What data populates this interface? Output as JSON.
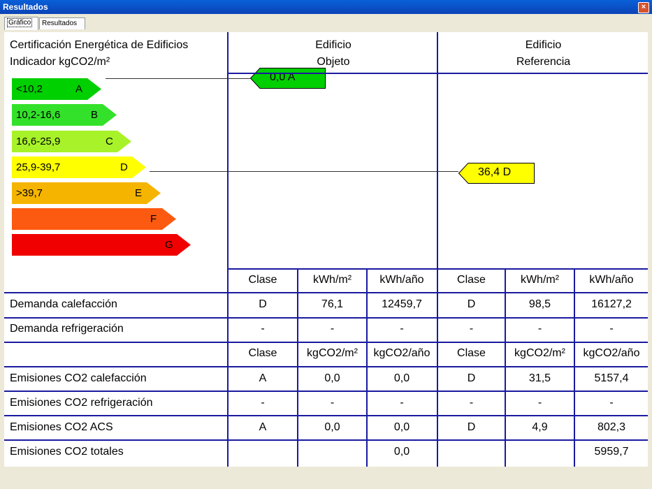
{
  "window": {
    "title": "Resultados",
    "close_glyph": "×"
  },
  "tabs": [
    {
      "label": "Gráfico",
      "active": true
    },
    {
      "label": "Resultados",
      "active": false
    }
  ],
  "header": {
    "cert_line1": "Certificación Energética de Edificios",
    "cert_line2": "Indicador kgCO2/m²",
    "obj_line1": "Edificio",
    "obj_line2": "Objeto",
    "ref_line1": "Edificio",
    "ref_line2": "Referencia"
  },
  "scale": [
    {
      "range": "<10,2",
      "letter": "A",
      "color": "#00d000"
    },
    {
      "range": "10,2-16,6",
      "letter": "B",
      "color": "#33e12a"
    },
    {
      "range": "16,6-25,9",
      "letter": "C",
      "color": "#a8f22a"
    },
    {
      "range": "25,9-39,7",
      "letter": "D",
      "color": "#ffff00"
    },
    {
      "range": ">39,7",
      "letter": "E",
      "color": "#f5b400"
    },
    {
      "range": "",
      "letter": "F",
      "color": "#fb5a10"
    },
    {
      "range": "",
      "letter": "G",
      "color": "#f00000"
    }
  ],
  "indicators": {
    "objeto": {
      "label": "0,0  A",
      "color": "#00d000",
      "class": "A"
    },
    "referencia": {
      "label": "36,4  D",
      "color": "#ffff00",
      "class": "D"
    }
  },
  "demand_header": [
    "Clase",
    "kWh/m²",
    "kWh/año",
    "Clase",
    "kWh/m²",
    "kWh/año"
  ],
  "demand_rows": [
    {
      "label": "Demanda calefacción",
      "cells": [
        "D",
        "76,1",
        "12459,7",
        "D",
        "98,5",
        "16127,2"
      ]
    },
    {
      "label": "Demanda refrigeración",
      "cells": [
        "-",
        "-",
        "-",
        "-",
        "-",
        "-"
      ]
    }
  ],
  "emission_header": [
    "Clase",
    "kgCO2/m²",
    "kgCO2/año",
    "Clase",
    "kgCO2/m²",
    "kgCO2/año"
  ],
  "emission_rows": [
    {
      "label": "Emisiones CO2 calefacción",
      "cells": [
        "A",
        "0,0",
        "0,0",
        "D",
        "31,5",
        "5157,4"
      ]
    },
    {
      "label": "Emisiones CO2 refrigeración",
      "cells": [
        "-",
        "-",
        "-",
        "-",
        "-",
        "-"
      ]
    },
    {
      "label": "Emisiones CO2 ACS",
      "cells": [
        "A",
        "0,0",
        "0,0",
        "D",
        "4,9",
        "802,3"
      ]
    },
    {
      "label": "Emisiones CO2 totales",
      "cells": [
        "",
        "",
        "0,0",
        "",
        "",
        "5959,7"
      ]
    }
  ]
}
